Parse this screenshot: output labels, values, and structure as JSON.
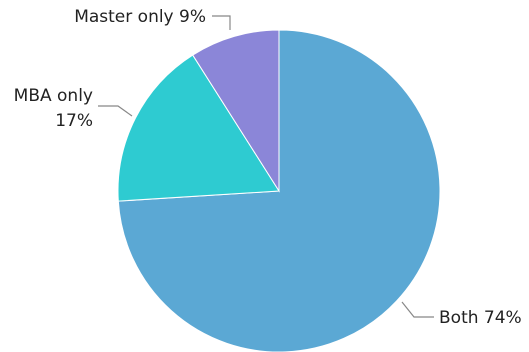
{
  "chart_data": {
    "type": "pie",
    "title": "",
    "slices": [
      {
        "label": "Both",
        "value": 74,
        "display": "Both 74%",
        "color": "#5ba8d4"
      },
      {
        "label": "MBA only",
        "value": 17,
        "display_lines": [
          "MBA only",
          "17%"
        ],
        "color": "#2ecbd1"
      },
      {
        "label": "Master only",
        "value": 9,
        "display": "Master only 9%",
        "color": "#8b86d8"
      }
    ],
    "legend": "none",
    "start_angle": "12 o'clock",
    "direction": "clockwise"
  }
}
